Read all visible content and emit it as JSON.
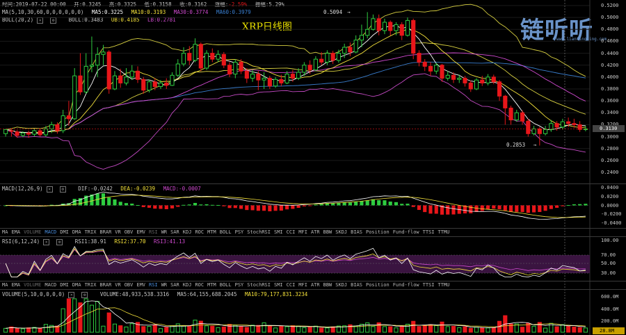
{
  "header": {
    "time": "时间:2019-07-22 00:00",
    "open": "开:0.3245",
    "high": "高:0.3325",
    "low": "低:0.3158",
    "close": "收:0.3162",
    "chg_label": "涨幅:",
    "chg_value": "-2.59%",
    "amp": "振幅:5.29%"
  },
  "ma_line": {
    "label": "MA(5,10,30,60,0,0,0,0,0,0)",
    "ma5": "MA5:0.3225",
    "ma10": "MA10:0.3193",
    "ma30": "MA30:0.3774",
    "ma60": "MA60:0.3979"
  },
  "boll_line": {
    "label": "BOLL(20,2)",
    "boll": "BOLL:0.3483",
    "ub": "UB:0.4185",
    "lb": "LB:0.2781"
  },
  "title": "XRP日线图",
  "logo": {
    "text": "链听听",
    "url": "www.liantingting.com"
  },
  "markers": {
    "high": "0.5094",
    "low": "0.2853"
  },
  "price_tag": "0.3130",
  "macd_line": {
    "label": "MACD(12,26,9)",
    "dif": "DIF:-0.0242",
    "dea": "DEA:-0.0239",
    "macd": "MACD:-0.0007"
  },
  "rsi_line": {
    "label": "RSI(6,12,24)",
    "rsi1": "RSI1:38.91",
    "rsi2": "RSI2:37.70",
    "rsi3": "RSI3:41.13"
  },
  "vol_line": {
    "label": "VOLUME(5,10,0,0,0,0)",
    "vol": "VOLUME:48,933,538.3316",
    "ma5": "MA5:64,155,688.2045",
    "ma10": "MA10:79,177,831.3234"
  },
  "vol_tag": "28.8M",
  "indicator_tabs": [
    "MA",
    "EMA",
    "VOLUME",
    "MACD",
    "DMI",
    "DMA",
    "TRIX",
    "BRAR",
    "VR",
    "OBV",
    "EMV",
    "RSI",
    "WR",
    "SAR",
    "KDJ",
    "ROC",
    "MTM",
    "BOLL",
    "PSY",
    "StochRSI",
    "SMI",
    "CCI",
    "MFI",
    "ATR",
    "BBW",
    "SKDJ",
    "BIAS",
    "Position",
    "Fund-flow",
    "TTSI",
    "TTMU"
  ],
  "tabs_dim": [
    "VOLUME",
    "RSI"
  ],
  "tab_active_1": "MACD",
  "tab_active_2": "RSI",
  "colors": {
    "up": "#2ecc40",
    "down": "#e8161a",
    "ma5": "#ffffff",
    "ma10": "#f5e23a",
    "ma30": "#d04ad0",
    "ma60": "#3a7fd0",
    "boll": "#d8d040",
    "rsi_band": "#3a1440"
  },
  "axes": {
    "price": [
      "0.5200",
      "0.5000",
      "0.4800",
      "0.4600",
      "0.4400",
      "0.4200",
      "0.4000",
      "0.3800",
      "0.3600",
      "0.3400",
      "0.3200",
      "0.3000",
      "0.2800",
      "0.2600",
      "0.2400"
    ],
    "macd": [
      "0.0400",
      "0.0200",
      "0.0000",
      "-0.0200",
      "-0.0400"
    ],
    "rsi": [
      "100.00",
      "70.00",
      "50.00",
      "30.00"
    ],
    "volume": [
      "600.0M",
      "400.0M",
      "200.0M"
    ]
  },
  "chart_data": {
    "type": "candlestick",
    "title": "XRP日线图",
    "ylim": [
      0.22,
      0.52
    ],
    "last_close": 0.313,
    "high_point": 0.5094,
    "low_point": 0.2853,
    "candles": [
      [
        0.305,
        0.312,
        0.3,
        0.31
      ],
      [
        0.31,
        0.309,
        0.3,
        0.314
      ],
      [
        0.308,
        0.302,
        0.298,
        0.311
      ],
      [
        0.302,
        0.306,
        0.299,
        0.309
      ],
      [
        0.306,
        0.304,
        0.298,
        0.31
      ],
      [
        0.304,
        0.31,
        0.3,
        0.313
      ],
      [
        0.31,
        0.303,
        0.3,
        0.314
      ],
      [
        0.303,
        0.313,
        0.3,
        0.318
      ],
      [
        0.313,
        0.32,
        0.306,
        0.325
      ],
      [
        0.32,
        0.31,
        0.305,
        0.324
      ],
      [
        0.31,
        0.335,
        0.306,
        0.345
      ],
      [
        0.335,
        0.33,
        0.318,
        0.36
      ],
      [
        0.33,
        0.402,
        0.328,
        0.415
      ],
      [
        0.402,
        0.375,
        0.37,
        0.44
      ],
      [
        0.375,
        0.418,
        0.372,
        0.44
      ],
      [
        0.418,
        0.42,
        0.408,
        0.468
      ],
      [
        0.42,
        0.438,
        0.4,
        0.45
      ],
      [
        0.438,
        0.442,
        0.42,
        0.454
      ],
      [
        0.442,
        0.38,
        0.372,
        0.445
      ],
      [
        0.38,
        0.402,
        0.378,
        0.41
      ],
      [
        0.402,
        0.39,
        0.382,
        0.414
      ],
      [
        0.39,
        0.4,
        0.386,
        0.415
      ],
      [
        0.4,
        0.41,
        0.395,
        0.42
      ],
      [
        0.41,
        0.396,
        0.39,
        0.418
      ],
      [
        0.396,
        0.378,
        0.372,
        0.4
      ],
      [
        0.378,
        0.392,
        0.374,
        0.396
      ],
      [
        0.392,
        0.384,
        0.378,
        0.398
      ],
      [
        0.384,
        0.39,
        0.38,
        0.395
      ],
      [
        0.39,
        0.386,
        0.38,
        0.398
      ],
      [
        0.386,
        0.403,
        0.385,
        0.408
      ],
      [
        0.403,
        0.422,
        0.4,
        0.43
      ],
      [
        0.422,
        0.44,
        0.418,
        0.45
      ],
      [
        0.44,
        0.428,
        0.42,
        0.452
      ],
      [
        0.428,
        0.455,
        0.425,
        0.465
      ],
      [
        0.455,
        0.415,
        0.41,
        0.458
      ],
      [
        0.415,
        0.44,
        0.412,
        0.445
      ],
      [
        0.44,
        0.43,
        0.425,
        0.448
      ],
      [
        0.43,
        0.438,
        0.425,
        0.445
      ],
      [
        0.438,
        0.42,
        0.415,
        0.442
      ],
      [
        0.42,
        0.405,
        0.4,
        0.425
      ],
      [
        0.405,
        0.425,
        0.398,
        0.43
      ],
      [
        0.425,
        0.41,
        0.405,
        0.43
      ],
      [
        0.41,
        0.398,
        0.39,
        0.415
      ],
      [
        0.398,
        0.405,
        0.392,
        0.412
      ],
      [
        0.405,
        0.395,
        0.378,
        0.41
      ],
      [
        0.395,
        0.398,
        0.38,
        0.408
      ],
      [
        0.398,
        0.385,
        0.38,
        0.402
      ],
      [
        0.385,
        0.396,
        0.382,
        0.4
      ],
      [
        0.396,
        0.39,
        0.385,
        0.404
      ],
      [
        0.39,
        0.405,
        0.388,
        0.41
      ],
      [
        0.405,
        0.398,
        0.392,
        0.412
      ],
      [
        0.398,
        0.408,
        0.395,
        0.415
      ],
      [
        0.408,
        0.42,
        0.402,
        0.425
      ],
      [
        0.42,
        0.412,
        0.405,
        0.428
      ],
      [
        0.412,
        0.43,
        0.41,
        0.435
      ],
      [
        0.43,
        0.425,
        0.42,
        0.442
      ],
      [
        0.425,
        0.44,
        0.42,
        0.445
      ],
      [
        0.44,
        0.428,
        0.422,
        0.444
      ],
      [
        0.428,
        0.44,
        0.424,
        0.446
      ],
      [
        0.44,
        0.45,
        0.432,
        0.456
      ],
      [
        0.45,
        0.442,
        0.435,
        0.458
      ],
      [
        0.442,
        0.462,
        0.44,
        0.47
      ],
      [
        0.462,
        0.47,
        0.45,
        0.488
      ],
      [
        0.47,
        0.48,
        0.465,
        0.509
      ],
      [
        0.48,
        0.498,
        0.478,
        0.505
      ],
      [
        0.498,
        0.478,
        0.47,
        0.505
      ],
      [
        0.478,
        0.492,
        0.472,
        0.498
      ],
      [
        0.492,
        0.478,
        0.47,
        0.495
      ],
      [
        0.478,
        0.488,
        0.47,
        0.492
      ],
      [
        0.488,
        0.47,
        0.462,
        0.492
      ],
      [
        0.47,
        0.495,
        0.468,
        0.5
      ],
      [
        0.495,
        0.44,
        0.43,
        0.498
      ],
      [
        0.44,
        0.425,
        0.418,
        0.445
      ],
      [
        0.425,
        0.418,
        0.41,
        0.43
      ],
      [
        0.418,
        0.41,
        0.402,
        0.425
      ],
      [
        0.41,
        0.42,
        0.405,
        0.424
      ],
      [
        0.42,
        0.398,
        0.392,
        0.422
      ],
      [
        0.398,
        0.403,
        0.394,
        0.41
      ],
      [
        0.403,
        0.396,
        0.39,
        0.408
      ],
      [
        0.396,
        0.398,
        0.39,
        0.404
      ],
      [
        0.398,
        0.39,
        0.384,
        0.402
      ],
      [
        0.39,
        0.38,
        0.375,
        0.394
      ],
      [
        0.38,
        0.395,
        0.378,
        0.398
      ],
      [
        0.395,
        0.39,
        0.385,
        0.402
      ],
      [
        0.39,
        0.4,
        0.386,
        0.405
      ],
      [
        0.4,
        0.392,
        0.388,
        0.404
      ],
      [
        0.392,
        0.368,
        0.36,
        0.395
      ],
      [
        0.368,
        0.348,
        0.32,
        0.37
      ],
      [
        0.348,
        0.328,
        0.32,
        0.352
      ],
      [
        0.328,
        0.34,
        0.325,
        0.345
      ],
      [
        0.34,
        0.326,
        0.32,
        0.344
      ],
      [
        0.326,
        0.305,
        0.3,
        0.33
      ],
      [
        0.305,
        0.313,
        0.302,
        0.318
      ],
      [
        0.313,
        0.305,
        0.285,
        0.316
      ],
      [
        0.305,
        0.312,
        0.302,
        0.318
      ],
      [
        0.312,
        0.322,
        0.308,
        0.328
      ],
      [
        0.322,
        0.316,
        0.31,
        0.326
      ],
      [
        0.316,
        0.325,
        0.312,
        0.33
      ],
      [
        0.325,
        0.322,
        0.316,
        0.332
      ],
      [
        0.322,
        0.32,
        0.315,
        0.33
      ],
      [
        0.32,
        0.312,
        0.308,
        0.326
      ],
      [
        0.312,
        0.313,
        0.309,
        0.318
      ]
    ],
    "volume_scale": [
      0,
      700
    ]
  }
}
